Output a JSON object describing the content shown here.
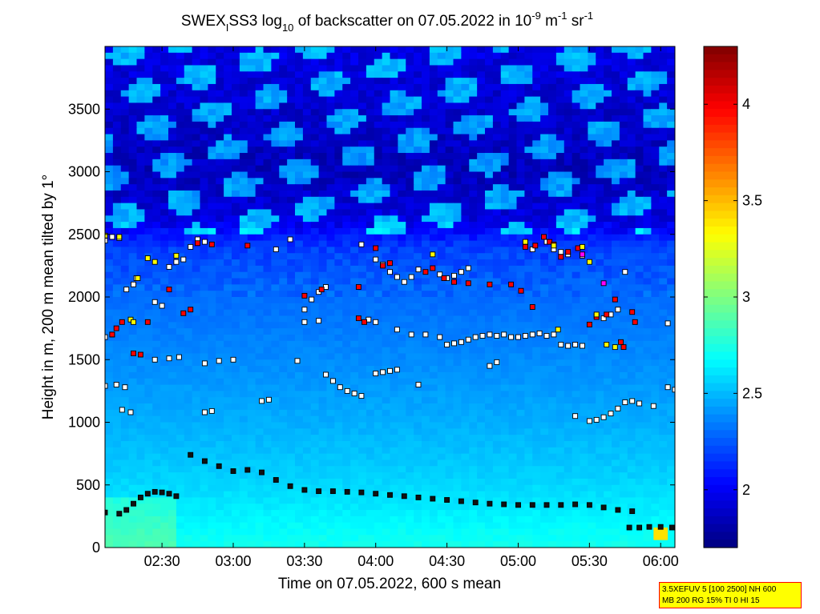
{
  "title": {
    "prefix": "SWEX",
    "sub1": "I",
    "mid": "SS3 log",
    "sub2": "10",
    "mid2": " of backscatter on 07.05.2022 in 10",
    "sup1": "-9",
    "mid3": " m",
    "sup2": "-1",
    "mid4": " sr",
    "sup3": "-1"
  },
  "info_box": {
    "line1": "3.5XEFUV 5 [100 2500] NH 600",
    "line2": "MB 200 RG 15% TI 0 HI 15"
  },
  "chart_data": {
    "type": "heatmap",
    "xlabel": "Time on 07.05.2022, 600 s mean",
    "ylabel": "Height in m, 200 m mean tilted by 1°",
    "xlim": [
      2.1,
      6.1
    ],
    "ylim": [
      0,
      4000
    ],
    "x_ticks": [
      {
        "value": 2.5,
        "label": "02:30"
      },
      {
        "value": 3.0,
        "label": "03:00"
      },
      {
        "value": 3.5,
        "label": "03:30"
      },
      {
        "value": 4.0,
        "label": "04:00"
      },
      {
        "value": 4.5,
        "label": "04:30"
      },
      {
        "value": 5.0,
        "label": "05:00"
      },
      {
        "value": 5.5,
        "label": "05:30"
      },
      {
        "value": 6.0,
        "label": "06:00"
      }
    ],
    "y_ticks": [
      {
        "value": 0,
        "label": "0"
      },
      {
        "value": 500,
        "label": "500"
      },
      {
        "value": 1000,
        "label": "1000"
      },
      {
        "value": 1500,
        "label": "1500"
      },
      {
        "value": 2000,
        "label": "2000"
      },
      {
        "value": 2500,
        "label": "2500"
      },
      {
        "value": 3000,
        "label": "3000"
      },
      {
        "value": 3500,
        "label": "3500"
      }
    ],
    "colorbar": {
      "min": 1.7,
      "max": 4.3,
      "colormap": "jet",
      "ticks": [
        {
          "value": 2.0,
          "label": "2"
        },
        {
          "value": 2.5,
          "label": "2.5"
        },
        {
          "value": 3.0,
          "label": "3"
        },
        {
          "value": 3.5,
          "label": "3.5"
        },
        {
          "value": 4.0,
          "label": "4"
        }
      ]
    },
    "field_profile": [
      {
        "h": 0,
        "v": 2.72
      },
      {
        "h": 150,
        "v": 2.68
      },
      {
        "h": 300,
        "v": 2.63
      },
      {
        "h": 600,
        "v": 2.55
      },
      {
        "h": 1000,
        "v": 2.47
      },
      {
        "h": 1500,
        "v": 2.38
      },
      {
        "h": 2000,
        "v": 2.3
      },
      {
        "h": 2400,
        "v": 2.18
      },
      {
        "h": 2600,
        "v": 1.95
      },
      {
        "h": 3000,
        "v": 1.85
      },
      {
        "h": 4000,
        "v": 1.95
      }
    ],
    "series": [
      {
        "key": "layer_low",
        "points": [
          [
            2.1,
            280
          ],
          [
            2.2,
            270
          ],
          [
            2.25,
            300
          ],
          [
            2.3,
            350
          ],
          [
            2.35,
            400
          ],
          [
            2.4,
            430
          ],
          [
            2.45,
            445
          ],
          [
            2.5,
            440
          ],
          [
            2.55,
            430
          ],
          [
            2.6,
            410
          ],
          [
            2.7,
            740
          ],
          [
            2.8,
            690
          ],
          [
            2.9,
            650
          ],
          [
            3.0,
            610
          ],
          [
            3.1,
            620
          ],
          [
            3.2,
            600
          ],
          [
            3.3,
            540
          ],
          [
            3.4,
            490
          ],
          [
            3.5,
            460
          ],
          [
            3.6,
            450
          ],
          [
            3.7,
            450
          ],
          [
            3.8,
            445
          ],
          [
            3.9,
            440
          ],
          [
            4.0,
            430
          ],
          [
            4.1,
            420
          ],
          [
            4.2,
            410
          ],
          [
            4.3,
            400
          ],
          [
            4.4,
            390
          ],
          [
            4.5,
            380
          ],
          [
            4.6,
            370
          ],
          [
            4.7,
            360
          ],
          [
            4.8,
            350
          ],
          [
            4.9,
            345
          ],
          [
            5.0,
            340
          ],
          [
            5.1,
            340
          ],
          [
            5.2,
            340
          ],
          [
            5.3,
            340
          ],
          [
            5.4,
            345
          ],
          [
            5.5,
            340
          ],
          [
            5.6,
            320
          ],
          [
            5.7,
            300
          ],
          [
            5.8,
            290
          ],
          [
            5.78,
            160
          ],
          [
            5.85,
            160
          ],
          [
            5.92,
            165
          ],
          [
            6.0,
            165
          ],
          [
            6.08,
            160
          ]
        ]
      },
      {
        "key": "layer_mid",
        "points": [
          [
            2.1,
            1290
          ],
          [
            2.18,
            1300
          ],
          [
            2.24,
            1280
          ],
          [
            2.22,
            1100
          ],
          [
            2.28,
            1080
          ],
          [
            2.45,
            1500
          ],
          [
            2.55,
            1510
          ],
          [
            2.62,
            1520
          ],
          [
            2.8,
            1470
          ],
          [
            2.9,
            1490
          ],
          [
            3.0,
            1500
          ],
          [
            2.8,
            1080
          ],
          [
            2.85,
            1090
          ],
          [
            3.2,
            1170
          ],
          [
            3.25,
            1180
          ],
          [
            3.45,
            1490
          ],
          [
            3.65,
            1380
          ],
          [
            3.7,
            1330
          ],
          [
            3.75,
            1280
          ],
          [
            3.8,
            1250
          ],
          [
            3.85,
            1230
          ],
          [
            3.9,
            1210
          ],
          [
            4.0,
            1390
          ],
          [
            4.05,
            1400
          ],
          [
            4.1,
            1410
          ],
          [
            4.15,
            1420
          ],
          [
            4.3,
            1300
          ],
          [
            5.4,
            1050
          ],
          [
            5.5,
            1010
          ],
          [
            5.55,
            1020
          ],
          [
            5.6,
            1040
          ],
          [
            5.65,
            1070
          ],
          [
            5.7,
            1110
          ],
          [
            5.75,
            1160
          ],
          [
            5.8,
            1170
          ],
          [
            5.85,
            1150
          ],
          [
            5.95,
            1130
          ],
          [
            6.05,
            1280
          ],
          [
            6.1,
            1260
          ],
          [
            4.15,
            1740
          ],
          [
            4.25,
            1700
          ],
          [
            4.35,
            1700
          ],
          [
            4.45,
            1680
          ],
          [
            4.5,
            1620
          ],
          [
            4.55,
            1630
          ],
          [
            4.6,
            1640
          ],
          [
            4.65,
            1660
          ],
          [
            4.7,
            1680
          ],
          [
            4.75,
            1690
          ],
          [
            4.8,
            1700
          ],
          [
            4.85,
            1690
          ],
          [
            4.9,
            1700
          ],
          [
            4.95,
            1680
          ],
          [
            5.0,
            1680
          ],
          [
            5.05,
            1690
          ],
          [
            5.1,
            1700
          ],
          [
            5.15,
            1710
          ],
          [
            5.2,
            1690
          ],
          [
            5.25,
            1700
          ],
          [
            5.3,
            1620
          ],
          [
            5.35,
            1610
          ],
          [
            5.4,
            1620
          ],
          [
            5.45,
            1610
          ],
          [
            4.8,
            1450
          ],
          [
            4.85,
            1480
          ],
          [
            3.5,
            1800
          ],
          [
            3.6,
            1810
          ],
          [
            3.95,
            1820
          ],
          [
            4.0,
            1800
          ],
          [
            2.1,
            1680
          ],
          [
            2.15,
            1700
          ],
          [
            6.05,
            1790
          ]
        ]
      },
      {
        "key": "layer_high",
        "points": [
          [
            2.1,
            2450
          ],
          [
            2.15,
            2480
          ],
          [
            2.2,
            2470
          ],
          [
            2.25,
            2060
          ],
          [
            2.3,
            2100
          ],
          [
            2.32,
            2150
          ],
          [
            2.45,
            1960
          ],
          [
            2.5,
            1930
          ],
          [
            2.55,
            2240
          ],
          [
            2.6,
            2280
          ],
          [
            2.65,
            2300
          ],
          [
            2.7,
            2400
          ],
          [
            2.75,
            2460
          ],
          [
            2.8,
            2440
          ],
          [
            3.3,
            2380
          ],
          [
            3.4,
            2460
          ],
          [
            3.5,
            1900
          ],
          [
            3.55,
            1980
          ],
          [
            3.6,
            2040
          ],
          [
            3.65,
            2080
          ],
          [
            3.9,
            2420
          ],
          [
            4.0,
            2300
          ],
          [
            4.05,
            2260
          ],
          [
            4.1,
            2200
          ],
          [
            4.15,
            2160
          ],
          [
            4.2,
            2120
          ],
          [
            4.25,
            2160
          ],
          [
            4.3,
            2220
          ],
          [
            4.45,
            2180
          ],
          [
            4.5,
            2150
          ],
          [
            4.55,
            2170
          ],
          [
            4.6,
            2200
          ],
          [
            4.65,
            2230
          ],
          [
            5.05,
            2410
          ],
          [
            5.1,
            2380
          ],
          [
            5.2,
            2440
          ],
          [
            5.25,
            2380
          ],
          [
            5.3,
            2360
          ],
          [
            5.35,
            2340
          ],
          [
            5.45,
            2330
          ],
          [
            5.55,
            1850
          ],
          [
            5.6,
            1830
          ],
          [
            5.65,
            1860
          ],
          [
            5.7,
            1900
          ],
          [
            5.75,
            2200
          ]
        ]
      },
      {
        "key": "red_markers",
        "points": [
          [
            2.15,
            1700
          ],
          [
            2.18,
            1750
          ],
          [
            2.22,
            1800
          ],
          [
            2.3,
            1550
          ],
          [
            2.35,
            1540
          ],
          [
            2.4,
            1800
          ],
          [
            2.55,
            2060
          ],
          [
            2.65,
            1870
          ],
          [
            2.7,
            1900
          ],
          [
            2.75,
            2430
          ],
          [
            2.85,
            2420
          ],
          [
            3.1,
            2410
          ],
          [
            3.5,
            2010
          ],
          [
            3.62,
            2060
          ],
          [
            3.88,
            2080
          ],
          [
            3.92,
            1800
          ],
          [
            4.0,
            2390
          ],
          [
            4.05,
            2250
          ],
          [
            4.1,
            2270
          ],
          [
            4.35,
            2200
          ],
          [
            4.4,
            2230
          ],
          [
            4.48,
            2150
          ],
          [
            4.55,
            2120
          ],
          [
            4.65,
            2110
          ],
          [
            4.8,
            2100
          ],
          [
            4.95,
            2100
          ],
          [
            5.02,
            2050
          ],
          [
            5.1,
            1920
          ],
          [
            5.18,
            2480
          ],
          [
            5.22,
            2440
          ],
          [
            5.25,
            2420
          ],
          [
            5.3,
            2320
          ],
          [
            5.35,
            2360
          ],
          [
            5.42,
            2390
          ],
          [
            5.5,
            1780
          ],
          [
            5.55,
            1840
          ],
          [
            5.62,
            1860
          ],
          [
            5.68,
            1980
          ],
          [
            5.72,
            1640
          ],
          [
            5.74,
            1600
          ],
          [
            5.8,
            1880
          ],
          [
            5.82,
            1800
          ],
          [
            5.05,
            2400
          ],
          [
            5.12,
            2410
          ],
          [
            3.88,
            1830
          ]
        ]
      },
      {
        "key": "yellow_markers",
        "points": [
          [
            2.1,
            2490
          ],
          [
            2.2,
            2480
          ],
          [
            2.28,
            1820
          ],
          [
            2.3,
            1800
          ],
          [
            2.33,
            2150
          ],
          [
            2.4,
            2310
          ],
          [
            2.45,
            2280
          ],
          [
            2.6,
            2330
          ],
          [
            4.4,
            2340
          ],
          [
            5.05,
            2440
          ],
          [
            5.25,
            2410
          ],
          [
            5.28,
            1740
          ],
          [
            5.45,
            2400
          ],
          [
            5.5,
            2280
          ],
          [
            5.55,
            1860
          ],
          [
            5.62,
            1620
          ],
          [
            5.68,
            1600
          ]
        ]
      },
      {
        "key": "magenta_markers",
        "points": [
          [
            5.45,
            2340
          ],
          [
            5.6,
            2110
          ]
        ]
      }
    ]
  }
}
